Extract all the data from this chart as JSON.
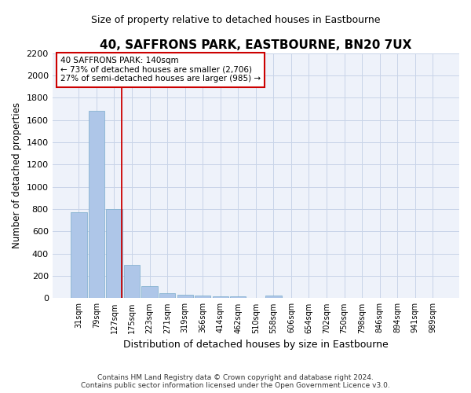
{
  "title": "40, SAFFRONS PARK, EASTBOURNE, BN20 7UX",
  "subtitle": "Size of property relative to detached houses in Eastbourne",
  "xlabel": "Distribution of detached houses by size in Eastbourne",
  "ylabel": "Number of detached properties",
  "footer_line1": "Contains HM Land Registry data © Crown copyright and database right 2024.",
  "footer_line2": "Contains public sector information licensed under the Open Government Licence v3.0.",
  "categories": [
    "31sqm",
    "79sqm",
    "127sqm",
    "175sqm",
    "223sqm",
    "271sqm",
    "319sqm",
    "366sqm",
    "414sqm",
    "462sqm",
    "510sqm",
    "558sqm",
    "606sqm",
    "654sqm",
    "702sqm",
    "750sqm",
    "798sqm",
    "846sqm",
    "894sqm",
    "941sqm",
    "989sqm"
  ],
  "values": [
    770,
    1680,
    800,
    300,
    110,
    45,
    30,
    25,
    20,
    20,
    0,
    25,
    0,
    0,
    0,
    0,
    0,
    0,
    0,
    0,
    0
  ],
  "bar_color": "#aec6e8",
  "bar_edge_color": "#7aaccc",
  "grid_color": "#c8d4e8",
  "background_color": "#eef2fa",
  "red_line_color": "#cc0000",
  "annotation_text_line1": "40 SAFFRONS PARK: 140sqm",
  "annotation_text_line2": "← 73% of detached houses are smaller (2,706)",
  "annotation_text_line3": "27% of semi-detached houses are larger (985) →",
  "annotation_box_color": "#cc0000",
  "ylim": [
    0,
    2200
  ],
  "yticks": [
    0,
    200,
    400,
    600,
    800,
    1000,
    1200,
    1400,
    1600,
    1800,
    2000,
    2200
  ],
  "red_line_index": 2.42
}
